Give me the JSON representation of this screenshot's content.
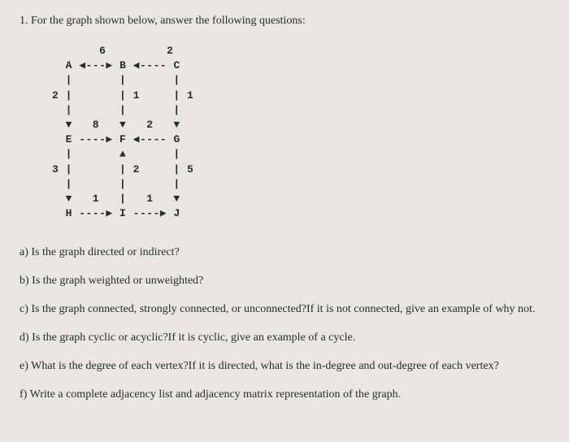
{
  "header": {
    "number": "1.",
    "text": "For the graph shown below, answer the following questions:"
  },
  "graph": {
    "ascii": "       6         2\n  A ◀---▶ B ◀---- C\n  |       |       |\n2 |       | 1     | 1\n  |       |       |\n  ▼   8   ▼   2   ▼\n  E ----▶ F ◀---- G\n  |       ▲       |\n3 |       | 2     | 5\n  |       |       |\n  ▼   1   |   1   ▼\n  H ----▶ I ----▶ J",
    "nodes": [
      "A",
      "B",
      "C",
      "E",
      "F",
      "G",
      "H",
      "I",
      "J"
    ],
    "edges": [
      {
        "from": "A",
        "to": "B",
        "weight": 6,
        "bidirectional": true
      },
      {
        "from": "C",
        "to": "B",
        "weight": 2,
        "bidirectional": false
      },
      {
        "from": "A",
        "to": "E",
        "weight": 2,
        "bidirectional": false
      },
      {
        "from": "B",
        "to": "F",
        "weight": 1,
        "bidirectional": false
      },
      {
        "from": "C",
        "to": "G",
        "weight": 1,
        "bidirectional": false
      },
      {
        "from": "E",
        "to": "F",
        "weight": 8,
        "bidirectional": false
      },
      {
        "from": "G",
        "to": "F",
        "weight": 2,
        "bidirectional": false
      },
      {
        "from": "E",
        "to": "H",
        "weight": 3,
        "bidirectional": false
      },
      {
        "from": "I",
        "to": "F",
        "weight": 2,
        "bidirectional": false
      },
      {
        "from": "G",
        "to": "J",
        "weight": 5,
        "bidirectional": false
      },
      {
        "from": "H",
        "to": "I",
        "weight": 1,
        "bidirectional": false
      },
      {
        "from": "I",
        "to": "J",
        "weight": 1,
        "bidirectional": false
      }
    ]
  },
  "questions": {
    "a": "a) Is the graph directed or indirect?",
    "b": "b) Is the graph weighted or unweighted?",
    "c": "c) Is the graph connected, strongly connected, or unconnected?If it is not connected, give an example of why not.",
    "d": "d) Is the graph cyclic or acyclic?If it is cyclic, give an example of a cycle.",
    "e": "e) What is the degree of each vertex?If it is directed, what is the in-degree and out-degree of each vertex?",
    "f": "f) Write a complete adjacency list and adjacency matrix representation of the graph."
  },
  "styling": {
    "background_color": "#e8e6e2",
    "text_color": "#2a2a2a",
    "font_family_body": "Georgia, Times New Roman, serif",
    "font_family_graph": "Courier New, monospace",
    "body_fontsize": 14,
    "graph_fontsize": 13
  }
}
